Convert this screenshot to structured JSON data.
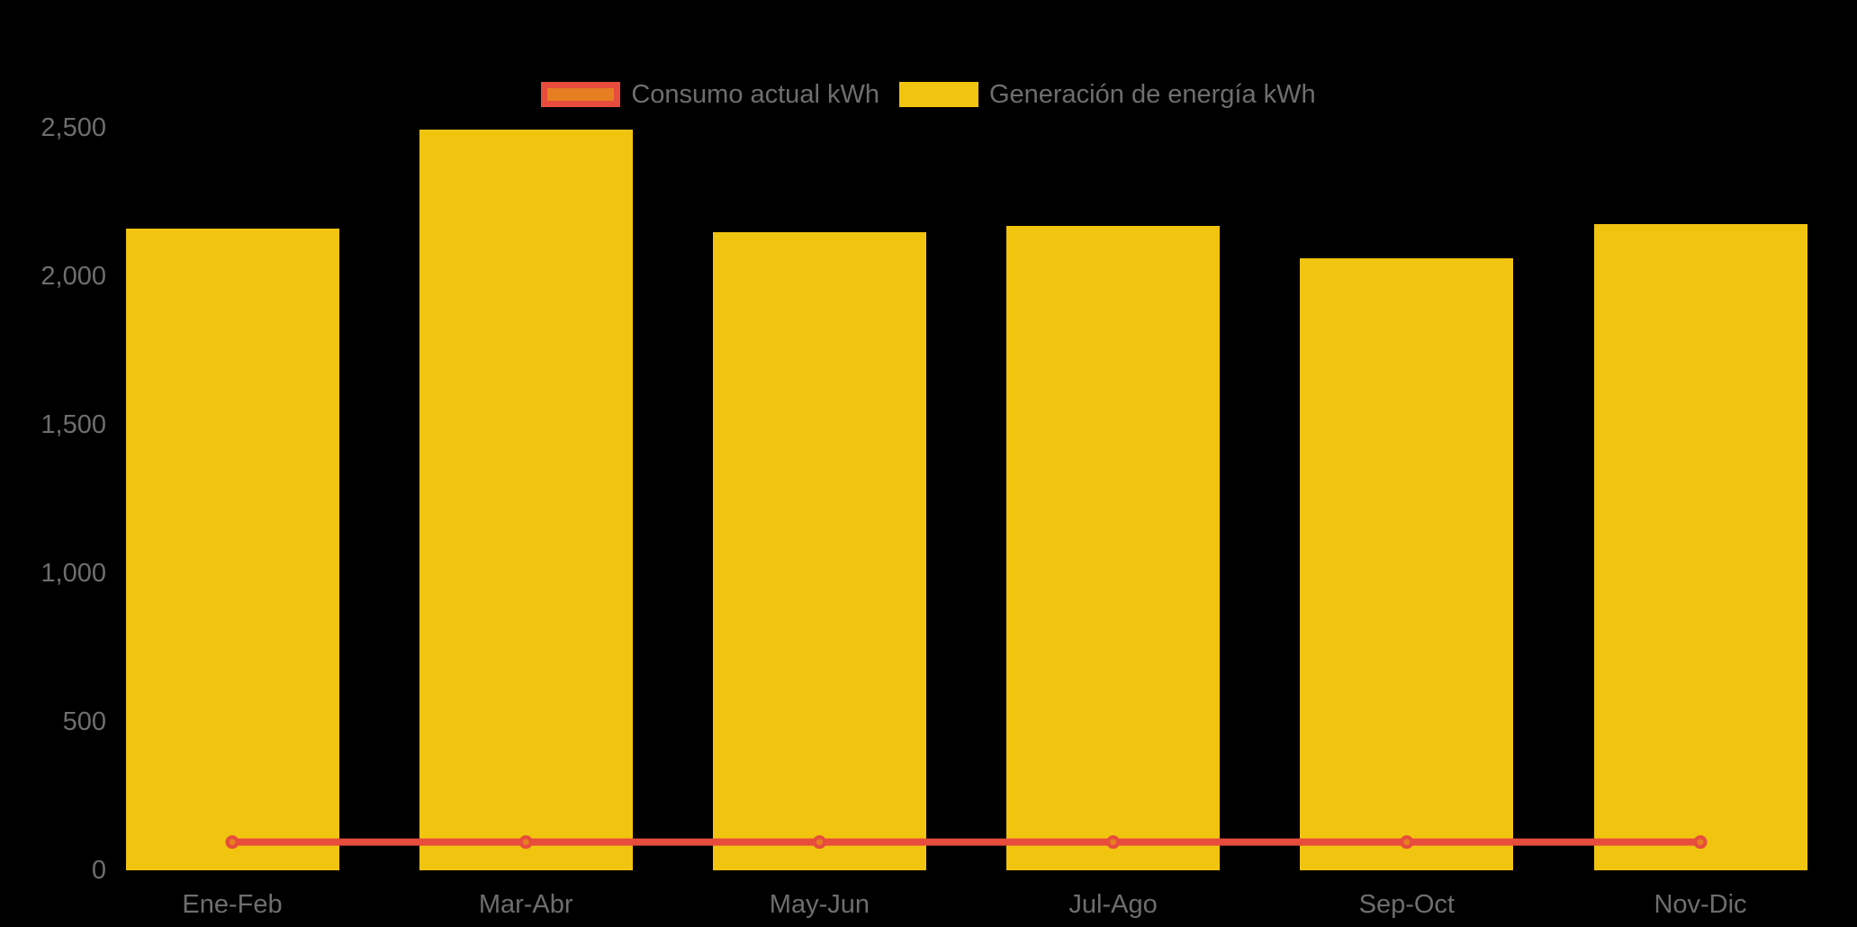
{
  "chart_data": {
    "type": "bar",
    "title": "",
    "xlabel": "",
    "ylabel": "",
    "categories": [
      "Ene-Feb",
      "Mar-Abr",
      "May-Jun",
      "Jul-Ago",
      "Sep-Oct",
      "Nov-Dic"
    ],
    "series": [
      {
        "name": "Consumo actual kWh",
        "type": "line",
        "values": [
          95,
          95,
          95,
          95,
          95,
          95
        ]
      },
      {
        "name": "Generación de energía kWh",
        "type": "bar",
        "values": [
          2160,
          2495,
          2150,
          2170,
          2060,
          2175
        ]
      }
    ],
    "ylim": [
      0,
      2500
    ],
    "yticks": [
      0,
      500,
      1000,
      1500,
      2000,
      2500
    ],
    "ytick_labels": [
      "0",
      "500",
      "1,000",
      "1,500",
      "2,000",
      "2,500"
    ],
    "grid": false,
    "legend_position": "top"
  },
  "colors": {
    "background": "#000000",
    "bar_fill": "#f1c40f",
    "line_stroke": "#e74c3c",
    "point_fill": "#e67e22",
    "point_border": "#e74c3c",
    "legend_consumo_fill": "#e67e22",
    "legend_consumo_border": "#e74c3c",
    "legend_generacion_fill": "#f1c40f",
    "text": "#6e6e6e"
  }
}
